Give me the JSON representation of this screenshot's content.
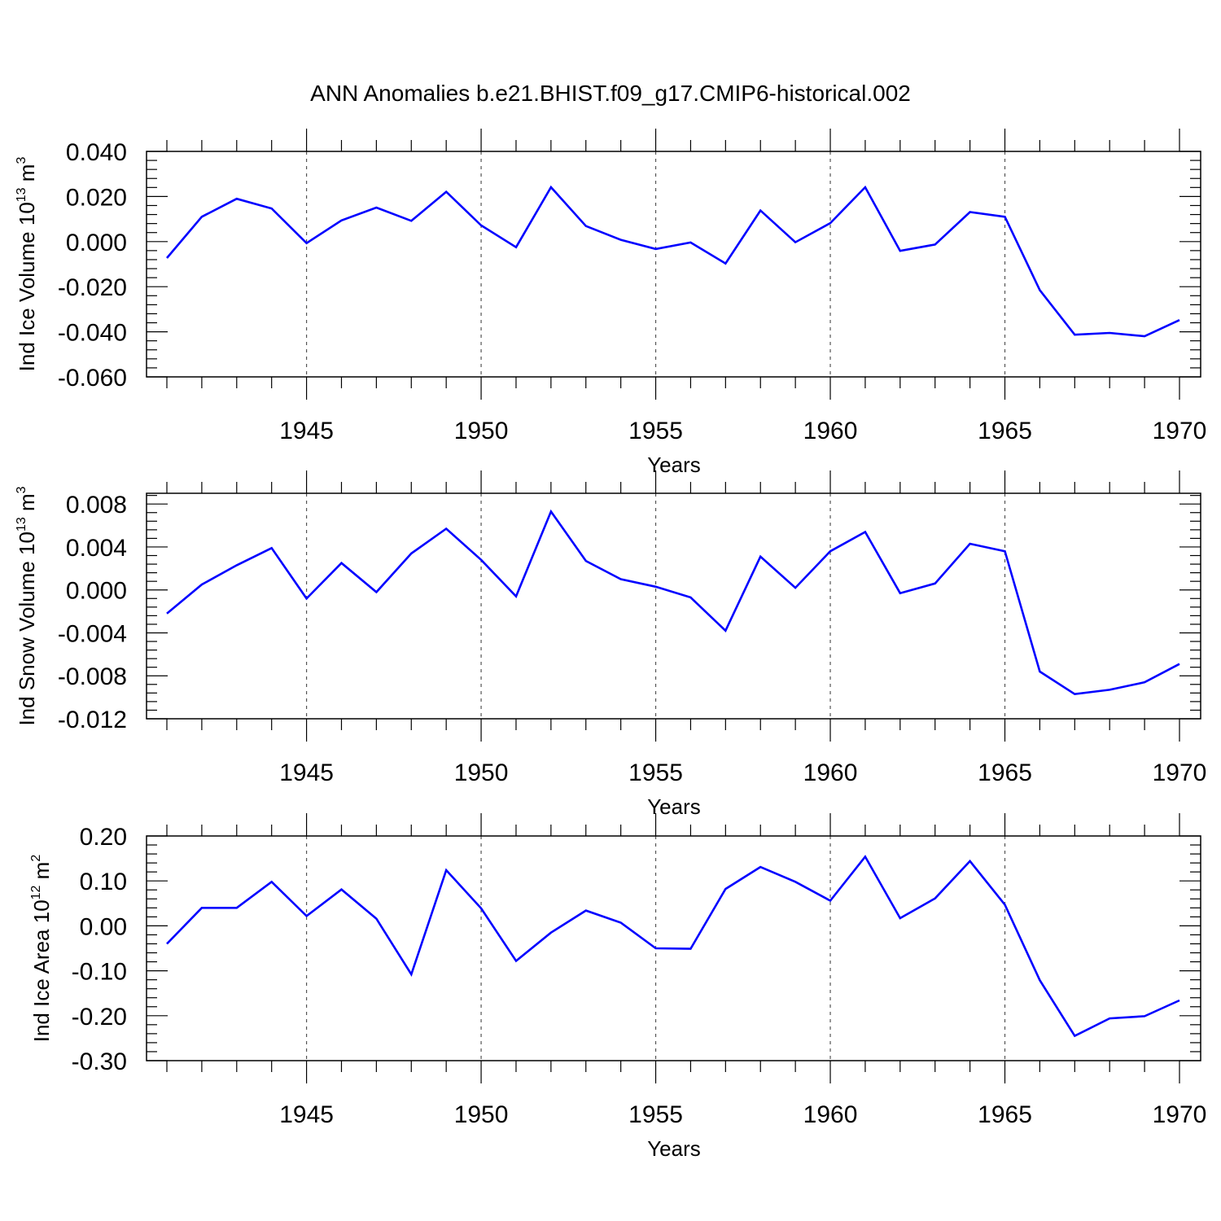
{
  "title": "ANN Anomalies b.e21.BHIST.f09_g17.CMIP6-historical.002",
  "colors": {
    "line": "#0000ff",
    "axis": "#000000",
    "grid": "#555555"
  },
  "chart_data": [
    {
      "type": "line",
      "title": "",
      "ylabel": {
        "text": "Ind Ice Volume 10",
        "exp": "13",
        "unit": " m",
        "unit_exp": "3"
      },
      "xlabel": "Years",
      "xlim": [
        1941,
        1970
      ],
      "ylim": [
        -0.06,
        0.04
      ],
      "xticks": [
        1945,
        1950,
        1955,
        1960,
        1965,
        1970
      ],
      "yticks": [
        -0.06,
        -0.04,
        -0.02,
        0.0,
        0.02,
        0.04
      ],
      "ytick_labels": [
        "-0.060",
        "-0.040",
        "-0.020",
        "0.000",
        "0.020",
        "0.040"
      ],
      "grid": "dashed vertical lines at 5-year ticks",
      "series": [
        {
          "x": [
            1941,
            1942,
            1943,
            1944,
            1945,
            1946,
            1947,
            1948,
            1949,
            1950,
            1951,
            1952,
            1953,
            1954,
            1955,
            1956,
            1957,
            1958,
            1959,
            1960,
            1961,
            1962,
            1963,
            1964,
            1965,
            1966,
            1967,
            1968,
            1969,
            1970
          ],
          "values": [
            -0.0073,
            0.011,
            0.019,
            0.0147,
            -0.0007,
            0.0094,
            0.0151,
            0.0092,
            0.0221,
            0.0072,
            -0.0025,
            0.0241,
            0.0069,
            0.0008,
            -0.0033,
            -0.0004,
            -0.0097,
            0.0138,
            -0.0003,
            0.0082,
            0.0241,
            -0.0041,
            -0.0013,
            0.0131,
            0.011,
            -0.0215,
            -0.0413,
            -0.0405,
            -0.042,
            -0.0348
          ]
        }
      ]
    },
    {
      "type": "line",
      "title": "",
      "ylabel": {
        "text": "Ind Snow Volume 10",
        "exp": "13",
        "unit": " m",
        "unit_exp": "3"
      },
      "xlabel": "Years",
      "xlim": [
        1941,
        1970
      ],
      "ylim": [
        -0.012,
        0.009
      ],
      "xticks": [
        1945,
        1950,
        1955,
        1960,
        1965,
        1970
      ],
      "yticks": [
        -0.012,
        -0.008,
        -0.004,
        0.0,
        0.004,
        0.008
      ],
      "ytick_labels": [
        "-0.012",
        "-0.008",
        "-0.004",
        "0.000",
        "0.004",
        "0.008"
      ],
      "grid": "dashed vertical lines at 5-year ticks",
      "series": [
        {
          "x": [
            1941,
            1942,
            1943,
            1944,
            1945,
            1946,
            1947,
            1948,
            1949,
            1950,
            1951,
            1952,
            1953,
            1954,
            1955,
            1956,
            1957,
            1958,
            1959,
            1960,
            1961,
            1962,
            1963,
            1964,
            1965,
            1966,
            1967,
            1968,
            1969,
            1970
          ],
          "values": [
            -0.0022,
            0.0005,
            0.0023,
            0.0039,
            -0.0008,
            0.0025,
            -0.0002,
            0.0034,
            0.0057,
            0.0028,
            -0.0006,
            0.0073,
            0.0027,
            0.001,
            0.0003,
            -0.0007,
            -0.0038,
            0.0031,
            0.0002,
            0.0036,
            0.0054,
            -0.0003,
            0.0006,
            0.0043,
            0.0036,
            -0.0076,
            -0.0097,
            -0.0093,
            -0.0086,
            -0.0069
          ]
        }
      ]
    },
    {
      "type": "line",
      "title": "",
      "ylabel": {
        "text": "Ind Ice Area 10",
        "exp": "12",
        "unit": " m",
        "unit_exp": "2"
      },
      "xlabel": "Years",
      "xlim": [
        1941,
        1970
      ],
      "ylim": [
        -0.3,
        0.2
      ],
      "xticks": [
        1945,
        1950,
        1955,
        1960,
        1965,
        1970
      ],
      "yticks": [
        -0.3,
        -0.2,
        -0.1,
        0.0,
        0.1,
        0.2
      ],
      "ytick_labels": [
        "-0.30",
        "-0.20",
        "-0.10",
        "0.00",
        "0.10",
        "0.20"
      ],
      "grid": "dashed vertical lines at 5-year ticks",
      "series": [
        {
          "x": [
            1941,
            1942,
            1943,
            1944,
            1945,
            1946,
            1947,
            1948,
            1949,
            1950,
            1951,
            1952,
            1953,
            1954,
            1955,
            1956,
            1957,
            1958,
            1959,
            1960,
            1961,
            1962,
            1963,
            1964,
            1965,
            1966,
            1967,
            1968,
            1969,
            1970
          ],
          "values": [
            -0.04,
            0.04,
            0.04,
            0.098,
            0.022,
            0.081,
            0.016,
            -0.108,
            0.124,
            0.039,
            -0.078,
            -0.015,
            0.034,
            0.007,
            -0.05,
            -0.051,
            0.082,
            0.131,
            0.098,
            0.056,
            0.154,
            0.017,
            0.061,
            0.144,
            0.047,
            -0.121,
            -0.245,
            -0.206,
            -0.201,
            -0.166
          ]
        }
      ]
    }
  ]
}
